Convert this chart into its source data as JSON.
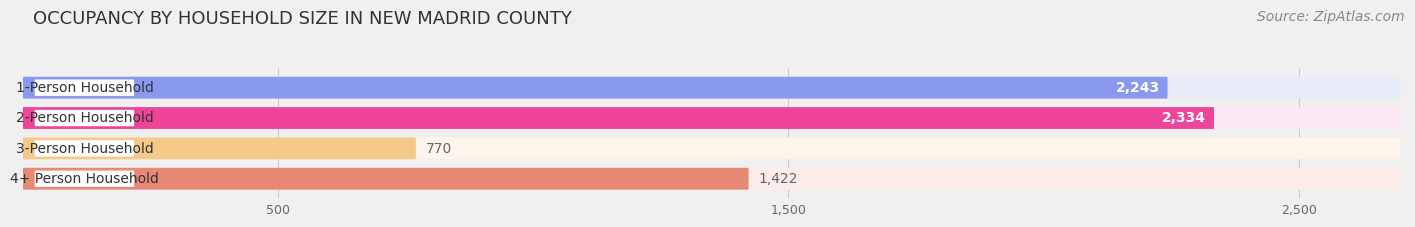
{
  "title": "OCCUPANCY BY HOUSEHOLD SIZE IN NEW MADRID COUNTY",
  "source": "Source: ZipAtlas.com",
  "categories": [
    "1-Person Household",
    "2-Person Household",
    "3-Person Household",
    "4+ Person Household"
  ],
  "values": [
    2243,
    2334,
    770,
    1422
  ],
  "bar_colors": [
    "#8899ee",
    "#ee4499",
    "#f5c98a",
    "#e88877"
  ],
  "bar_bg_colors": [
    "#e8ecf8",
    "#fce8f3",
    "#fdf5ec",
    "#fdecea"
  ],
  "value_colors": [
    "white",
    "white",
    "#888888",
    "#888888"
  ],
  "value_inside": [
    true,
    true,
    false,
    false
  ],
  "xlim_max": 2700,
  "xticks": [
    500,
    1500,
    2500
  ],
  "title_fontsize": 13,
  "source_fontsize": 10,
  "label_fontsize": 10,
  "value_fontsize": 10,
  "tick_fontsize": 9,
  "background_color": "#f0f0f0",
  "label_bg_color": "#ffffff",
  "grid_color": "#cccccc"
}
